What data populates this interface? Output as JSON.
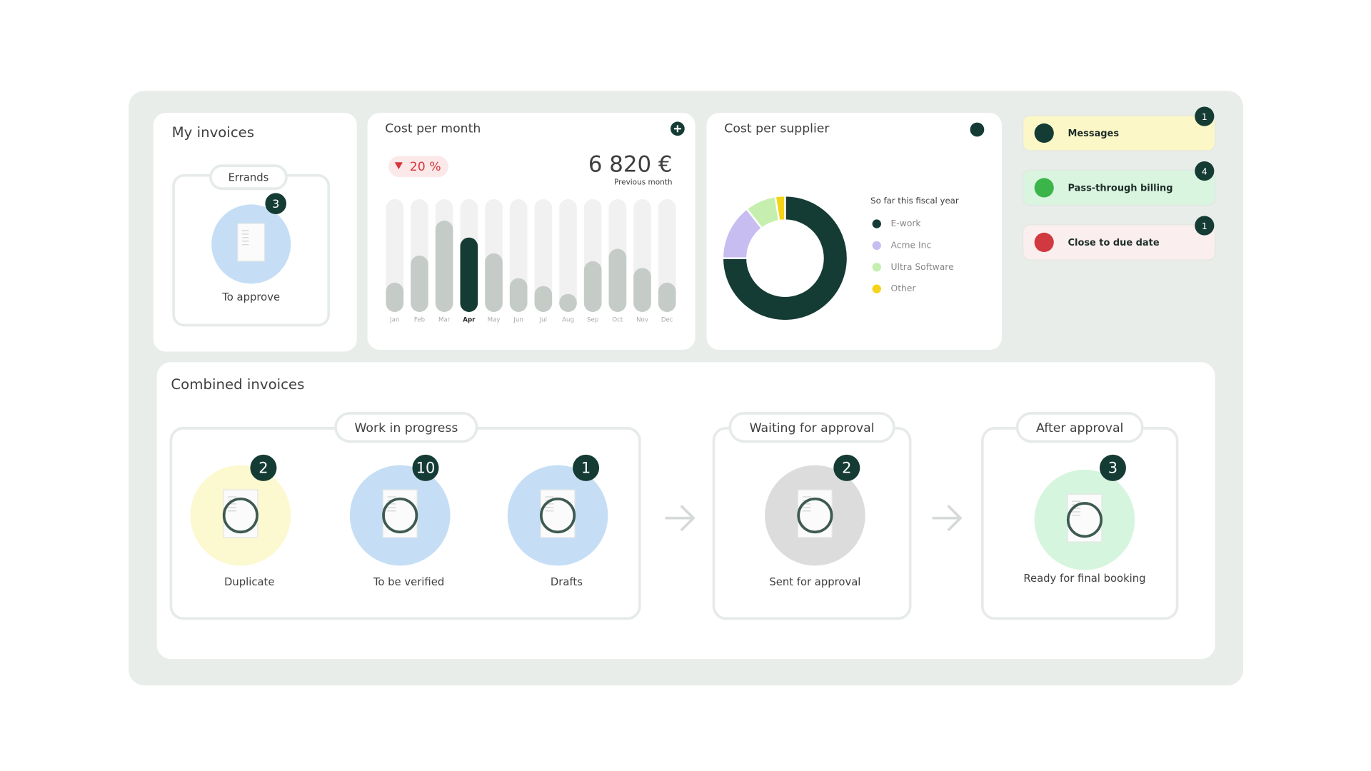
{
  "my_invoices": {
    "title": "My invoices",
    "group": "Errands",
    "count": 3,
    "label": "To approve"
  },
  "chart_data": [
    {
      "type": "bar",
      "title": "Cost per month",
      "change": "20 %",
      "total": "6 820 €",
      "total_caption": "Previous month",
      "categories": [
        "Jan",
        "Feb",
        "Mar",
        "Apr",
        "May",
        "Jun",
        "Jul",
        "Aug",
        "Sep",
        "Oct",
        "Nov",
        "Dec"
      ],
      "values": [
        26,
        50,
        81,
        66,
        52,
        30,
        23,
        16,
        45,
        56,
        39,
        26
      ],
      "ylim": [
        0,
        100
      ],
      "color": "#c5ccc8",
      "highlight": "Apr",
      "highlight_color": "#153c34"
    },
    {
      "type": "pie",
      "title": "Cost per supplier",
      "legend_title": "So far this fiscal year",
      "categories": [
        "E-work",
        "Acme Inc",
        "Ultra Software",
        "Other"
      ],
      "values": [
        75,
        14.5,
        8,
        2.5
      ],
      "colors": [
        "#153c34",
        "#c8bdf0",
        "#c6efaf",
        "#f5d318"
      ]
    }
  ],
  "notifications": [
    {
      "label": "Messages",
      "count": 1
    },
    {
      "label": "Pass-through billing",
      "count": 4
    },
    {
      "label": "Close to due date",
      "count": 1
    }
  ],
  "combined": {
    "title": "Combined invoices",
    "stages": [
      {
        "title": "Work in progress",
        "items": [
          {
            "count": 2,
            "label": "Duplicate"
          },
          {
            "count": 10,
            "label": "To be verified"
          },
          {
            "count": 1,
            "label": "Drafts"
          }
        ]
      },
      {
        "title": "Waiting for approval",
        "items": [
          {
            "count": 2,
            "label": "Sent for approval"
          }
        ]
      },
      {
        "title": "After approval",
        "items": [
          {
            "count": 3,
            "label": "Ready for final booking"
          }
        ]
      }
    ]
  }
}
